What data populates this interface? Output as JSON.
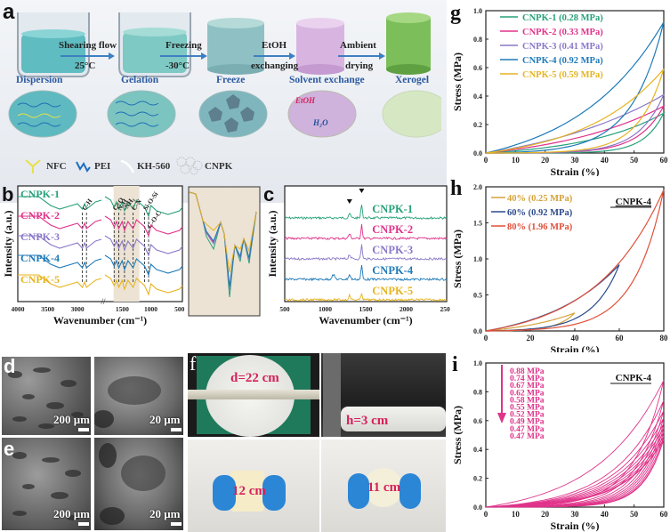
{
  "panel_a": {
    "letter": "a",
    "stages": [
      {
        "label": "Dispersion"
      },
      {
        "label": "Gelation"
      },
      {
        "label": "Freeze"
      },
      {
        "label": "Solvent exchange"
      },
      {
        "label": "Xerogel"
      }
    ],
    "steps": [
      {
        "top": "Shearing flow",
        "bottom": "25°C"
      },
      {
        "top": "Freezing",
        "bottom": "-30°C"
      },
      {
        "top": "EtOH",
        "bottom": "exchanging"
      },
      {
        "top": "Ambient",
        "bottom": "drying"
      }
    ],
    "inset_labels": {
      "etoh": "EtOH",
      "water": "H₂O"
    },
    "legend": [
      {
        "label": "NFC",
        "icon": "y-fiber-icon",
        "color": "#e8e04a"
      },
      {
        "label": "PEI",
        "icon": "wave-chain-icon",
        "color": "#1f6fc0"
      },
      {
        "label": "KH-560",
        "icon": "curve-icon",
        "color": "#ffffff"
      },
      {
        "label": "CNPK",
        "icon": "network-icon",
        "color": "#bbbbbb"
      }
    ]
  },
  "chart_data": [
    {
      "id": "b",
      "type": "line",
      "title": "",
      "xlabel": "Wavenumber (cm⁻¹)",
      "ylabel": "Intensity (a.u.)",
      "xlim": [
        4000,
        450
      ],
      "axis_break": [
        2600,
        1800
      ],
      "xticks": [
        "4000",
        "3500",
        "3000",
        "1500",
        "1000",
        "500"
      ],
      "annotations": [
        "C-H",
        "C=O",
        "N-H",
        "-NH₂",
        "C-N",
        "Si-O-Si",
        "C-O-C"
      ],
      "shaded_region": [
        1650,
        1200
      ],
      "series": [
        {
          "name": "CNPK-1",
          "color": "#27a17a"
        },
        {
          "name": "CNPK-2",
          "color": "#e0338a"
        },
        {
          "name": "CNPK-3",
          "color": "#8a78c8"
        },
        {
          "name": "CNPK-4",
          "color": "#1f7ab8"
        },
        {
          "name": "CNPK-5",
          "color": "#e6b422"
        }
      ]
    },
    {
      "id": "c",
      "type": "line",
      "xlabel": "Wavenumber (cm⁻¹)",
      "ylabel": "Intensity (a.u.)",
      "xlim": [
        500,
        2500
      ],
      "xticks": [
        "500",
        "1000",
        "1500",
        "2000",
        "2500"
      ],
      "peak_markers": [
        1300,
        1450
      ],
      "series": [
        {
          "name": "CNPK-1",
          "color": "#27a17a"
        },
        {
          "name": "CNPK-2",
          "color": "#e0338a"
        },
        {
          "name": "CNPK-3",
          "color": "#8a78c8"
        },
        {
          "name": "CNPK-4",
          "color": "#1f7ab8"
        },
        {
          "name": "CNPK-5",
          "color": "#e6b422"
        }
      ]
    },
    {
      "id": "g",
      "type": "line",
      "xlabel": "Strain (%)",
      "ylabel": "Stress (MPa)",
      "xlim": [
        0,
        60
      ],
      "ylim": [
        0,
        1.0
      ],
      "xticks": [
        "0",
        "10",
        "20",
        "30",
        "40",
        "50",
        "60"
      ],
      "yticks": [
        "0.0",
        "0.2",
        "0.4",
        "0.6",
        "0.8",
        "1.0"
      ],
      "legend_position": "top-left",
      "series": [
        {
          "name": "CNPK-1 (0.28 MPa)",
          "color": "#27a17a",
          "max_strain": 60,
          "max_stress": 0.28
        },
        {
          "name": "CNPK-2 (0.33 MPa)",
          "color": "#e0338a",
          "max_strain": 60,
          "max_stress": 0.33
        },
        {
          "name": "CNPK-3 (0.41 MPa)",
          "color": "#8a78c8",
          "max_strain": 60,
          "max_stress": 0.41
        },
        {
          "name": "CNPK-4 (0.92 MPa)",
          "color": "#1f7ab8",
          "max_strain": 60,
          "max_stress": 0.92
        },
        {
          "name": "CNPK-5 (0.59 MPa)",
          "color": "#e6b422",
          "max_strain": 60,
          "max_stress": 0.59
        }
      ]
    },
    {
      "id": "h",
      "type": "line",
      "xlabel": "Strain (%)",
      "ylabel": "Stress (MPa)",
      "xlim": [
        0,
        80
      ],
      "ylim": [
        0,
        2.0
      ],
      "xticks": [
        "0",
        "20",
        "40",
        "60",
        "80"
      ],
      "yticks": [
        "0.0",
        "0.5",
        "1.0",
        "1.5",
        "2.0"
      ],
      "annotation": "CNPK-4",
      "legend_position": "top-left",
      "series": [
        {
          "name": "40% (0.25 MPa)",
          "color": "#d4a23a",
          "max_strain": 40,
          "max_stress": 0.25
        },
        {
          "name": "60% (0.92 MPa)",
          "color": "#2b4a8c",
          "max_strain": 60,
          "max_stress": 0.92
        },
        {
          "name": "80% (1.96 MPa)",
          "color": "#e0503a",
          "max_strain": 80,
          "max_stress": 1.96
        }
      ]
    },
    {
      "id": "i",
      "type": "line",
      "xlabel": "Strain (%)",
      "ylabel": "Stress (MPa)",
      "xlim": [
        0,
        60
      ],
      "ylim": [
        0,
        1.0
      ],
      "xticks": [
        "0",
        "10",
        "20",
        "30",
        "40",
        "50",
        "60"
      ],
      "yticks": [
        "0.0",
        "0.2",
        "0.4",
        "0.6",
        "0.8",
        "1.0"
      ],
      "annotation": "CNPK-4",
      "color": "#e0338a",
      "cycle_max_stress": [
        0.88,
        0.74,
        0.67,
        0.62,
        0.58,
        0.55,
        0.52,
        0.49,
        0.47,
        0.47
      ],
      "cycle_labels": [
        "0.88 MPa",
        "0.74 MPa",
        "0.67 MPa",
        "0.62 MPa",
        "0.58 MPa",
        "0.55 MPa",
        "0.52 MPa",
        "0.49 MPa",
        "0.47 MPa",
        "0.47 MPa"
      ]
    }
  ],
  "panel_b": {
    "letter": "b"
  },
  "panel_c": {
    "letter": "c"
  },
  "panel_d": {
    "letter": "d",
    "scale_left": "200 μm",
    "scale_right": "20 μm"
  },
  "panel_e": {
    "letter": "e",
    "scale_left": "200 μm",
    "scale_right": "20 μm"
  },
  "panel_f": {
    "letter": "f",
    "diameter": "d=22 cm",
    "height": "h=3 cm",
    "width1": "12 cm",
    "width2": "11 cm"
  },
  "panel_g": {
    "letter": "g"
  },
  "panel_h": {
    "letter": "h"
  },
  "panel_i": {
    "letter": "i"
  }
}
